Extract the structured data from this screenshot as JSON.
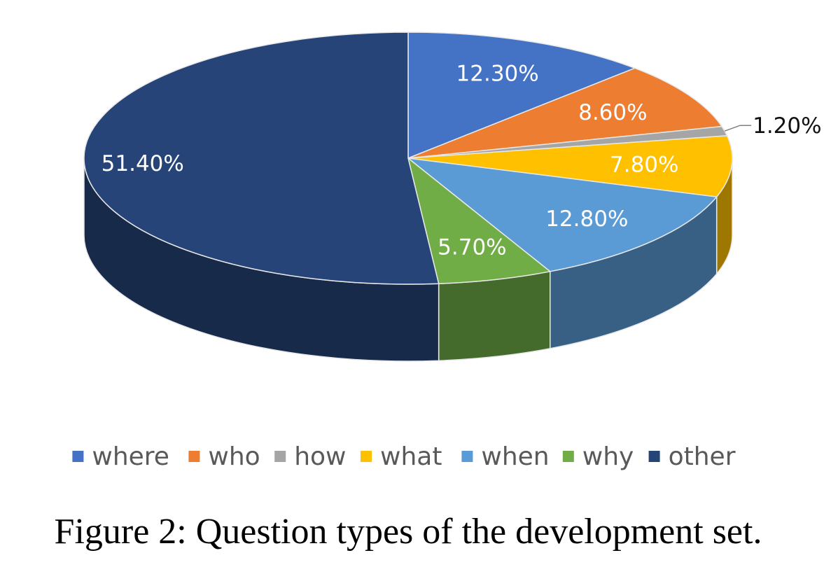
{
  "chart_data": {
    "type": "pie",
    "style": "3d",
    "categories": [
      "where",
      "who",
      "how",
      "what",
      "when",
      "why",
      "other"
    ],
    "values": [
      12.3,
      8.6,
      1.2,
      7.8,
      12.8,
      5.7,
      51.4
    ],
    "data_labels": [
      "12.30%",
      "8.60%",
      "1.20%",
      "7.80%",
      "12.80%",
      "5.70%",
      "51.40%"
    ],
    "colors": [
      "#4472c4",
      "#ed7d31",
      "#a5a5a5",
      "#ffc000",
      "#5b9bd5",
      "#70ad47",
      "#264478"
    ],
    "start_angle_deg": 0,
    "direction": "clockwise",
    "legend": "bottom",
    "caption": "Figure 2:  Question types of the development set."
  }
}
